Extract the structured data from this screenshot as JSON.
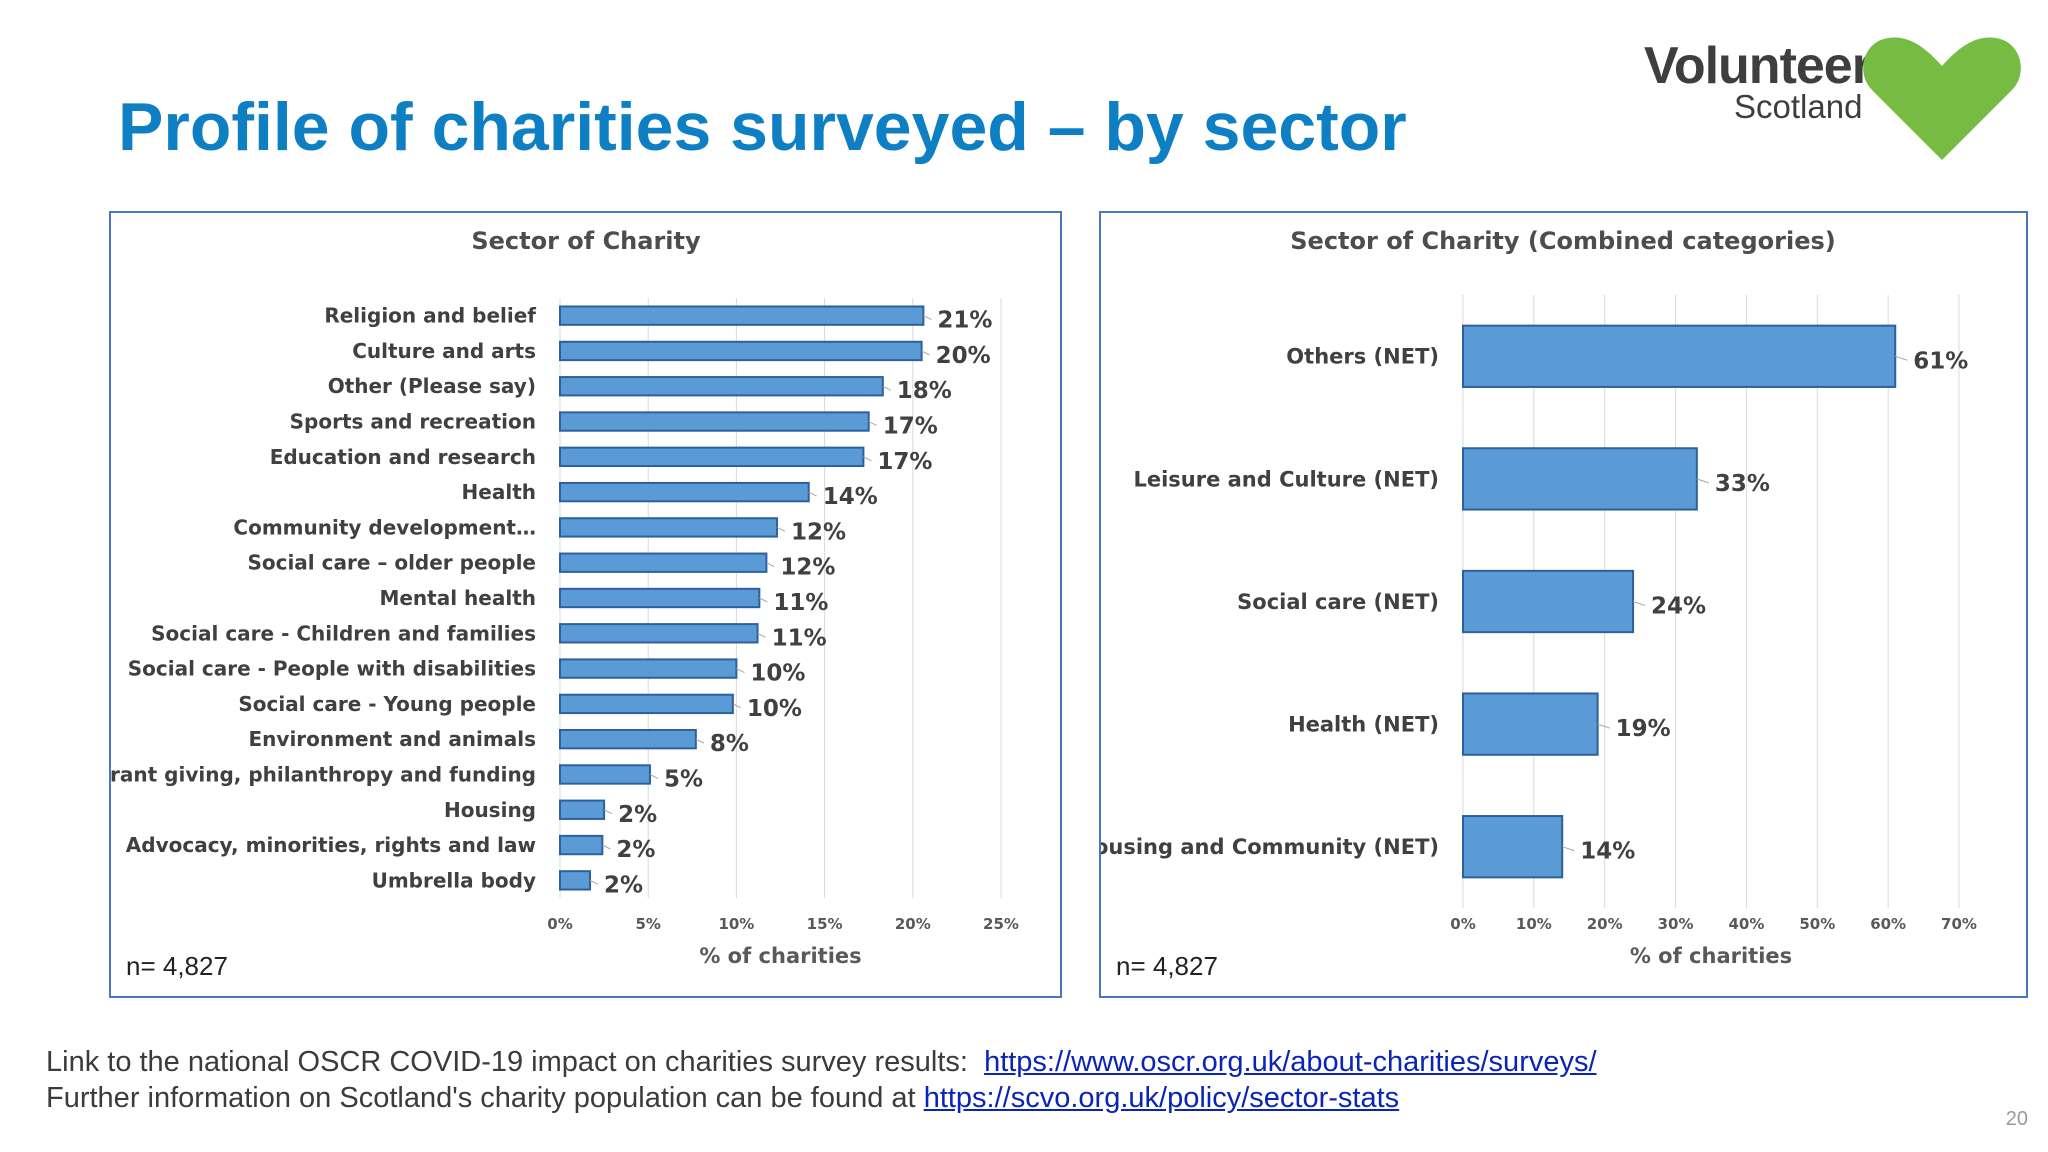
{
  "slide": {
    "title": "Profile of charities surveyed – by sector",
    "logo_line1": "Volunteer",
    "logo_line2": "Scotland",
    "footer_line1_text": "Link to the national OSCR COVID-19 impact on charities survey results:  ",
    "footer_line1_link": "https://www.oscr.org.uk/about-charities/surveys/",
    "footer_line2_text": "Further information on Scotland's charity population can be found at ",
    "footer_line2_link": "https://scvo.org.uk/policy/sector-stats",
    "page_number": "20"
  },
  "colors": {
    "title": "#0f7fc4",
    "bar_fill": "#5b9bd5",
    "bar_stroke": "#2e5f9e",
    "panel_border": "#4a78c0",
    "logo_green": "#76bc43",
    "link": "#0b24b8"
  },
  "chart_data": [
    {
      "type": "bar",
      "orientation": "horizontal",
      "title": "Sector of Charity",
      "xlabel": "% of charities",
      "n_label": "n= 4,827",
      "xlim": [
        0,
        25
      ],
      "xticks": [
        "0%",
        "5%",
        "10%",
        "15%",
        "20%",
        "25%"
      ],
      "categories": [
        "Religion and belief",
        "Culture and arts",
        "Other (Please say)",
        "Sports and recreation",
        "Education and research",
        "Health",
        "Community development…",
        "Social care – older people",
        "Mental health",
        "Social care - Children and families",
        "Social care - People with disabilities",
        "Social care - Young people",
        "Environment and animals",
        "Grant giving, philanthropy and funding",
        "Housing",
        "Advocacy, minorities, rights and law",
        "Umbrella body"
      ],
      "values": [
        20.6,
        20.5,
        18.3,
        17.5,
        17.2,
        14.1,
        12.3,
        11.7,
        11.3,
        11.2,
        10.0,
        9.8,
        7.7,
        5.1,
        2.5,
        2.4,
        1.7
      ],
      "data_labels": [
        "21%",
        "20%",
        "18%",
        "17%",
        "17%",
        "14%",
        "12%",
        "12%",
        "11%",
        "11%",
        "10%",
        "10%",
        "8%",
        "5%",
        "2%",
        "2%",
        "2%"
      ],
      "grid": true
    },
    {
      "type": "bar",
      "orientation": "horizontal",
      "title": "Sector of Charity (Combined categories)",
      "xlabel": "% of charities",
      "n_label": "n= 4,827",
      "xlim": [
        0,
        70
      ],
      "xticks": [
        "0%",
        "10%",
        "20%",
        "30%",
        "40%",
        "50%",
        "60%",
        "70%"
      ],
      "categories": [
        "Others (NET)",
        "Leisure and Culture (NET)",
        "Social care (NET)",
        "Health (NET)",
        "Housing and Community (NET)"
      ],
      "values": [
        61,
        33,
        24,
        19,
        14
      ],
      "data_labels": [
        "61%",
        "33%",
        "24%",
        "19%",
        "14%"
      ],
      "grid": true
    }
  ]
}
